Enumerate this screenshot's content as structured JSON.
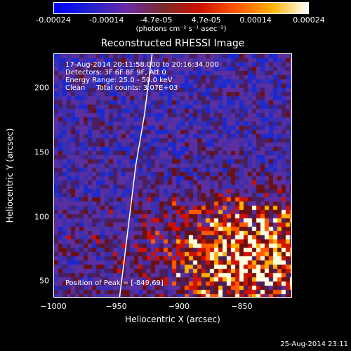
{
  "colorbar": {
    "tick_labels": [
      "-0.00024",
      "-0.00014",
      "-4.7e-05",
      "4.7e-05",
      "0.00014",
      "0.00024"
    ],
    "units_line": "(photons cm⁻² s⁻¹ asec⁻²)",
    "range": [
      -0.00024,
      0.00024
    ],
    "colors": [
      "#0000ff",
      "#2222cc",
      "#6a2aa8",
      "#7a2a2a",
      "#cc1100",
      "#ff5500",
      "#ffb000",
      "#ffffff"
    ]
  },
  "plot": {
    "title": "Reconstructed RHESSI Image",
    "info_lines": [
      "17-Aug-2014 20:11:58.000 to 20:16:34.000",
      "Detectors: 3F 6F 8F 9F, Att 0",
      "Energy Range: 25.0 - 50.0 keV",
      "Clean     Total counts: 3.07E+03"
    ],
    "peak_text": "Position of Peak = [-849,69]",
    "xlabel": "Heliocentric X (arcsec)",
    "ylabel": "Heliocentric Y (arcsec)"
  },
  "timestamp": "25-Aug-2014 23:11",
  "chart_data": {
    "type": "heatmap",
    "title": "Reconstructed RHESSI Image",
    "xlabel": "Heliocentric X (arcsec)",
    "ylabel": "Heliocentric Y (arcsec)",
    "xlim": [
      -1000,
      -810
    ],
    "ylim": [
      37,
      227
    ],
    "x_ticks": [
      -1000,
      -950,
      -900,
      -850
    ],
    "x_tick_labels": [
      "−1000",
      "−950",
      "−900",
      "−850"
    ],
    "y_ticks": [
      50,
      100,
      150,
      200
    ],
    "y_tick_labels": [
      "50",
      "100",
      "150",
      "200"
    ],
    "peak_position": [
      -849,
      69
    ],
    "bright_region": {
      "x_center": -849,
      "y_center": 69
    },
    "limb_points": [
      [
        -948,
        37
      ],
      [
        -945,
        60
      ],
      [
        -940,
        100
      ],
      [
        -935,
        140
      ],
      [
        -928,
        180
      ],
      [
        -922,
        227
      ]
    ]
  }
}
